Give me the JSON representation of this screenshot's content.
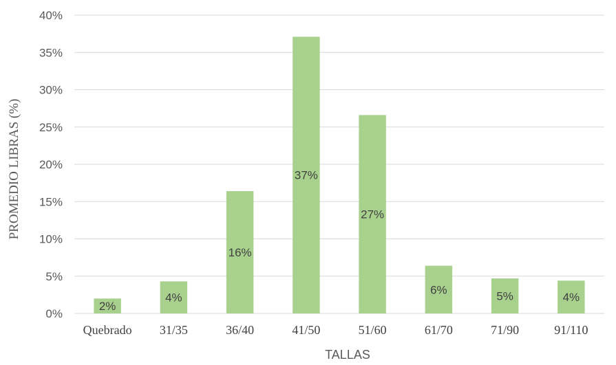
{
  "chart_data": {
    "type": "bar",
    "categories": [
      "Quebrado",
      "31/35",
      "36/40",
      "41/50",
      "51/60",
      "61/70",
      "71/90",
      "91/110"
    ],
    "values": [
      2,
      4.3,
      16.4,
      37.1,
      26.6,
      6.4,
      4.7,
      4.4
    ],
    "data_labels": [
      "2%",
      "4%",
      "16%",
      "37%",
      "27%",
      "6%",
      "5%",
      "4%"
    ],
    "xlabel": "TALLAS",
    "ylabel": "PROMEDIO LIBRAS (%)",
    "ylim": [
      0,
      40
    ],
    "yticks": [
      0,
      5,
      10,
      15,
      20,
      25,
      30,
      35,
      40
    ],
    "ytick_labels": [
      "0%",
      "5%",
      "10%",
      "15%",
      "20%",
      "25%",
      "30%",
      "35%",
      "40%"
    ],
    "grid": true,
    "legend": false,
    "bar_color": "#a9d18e",
    "grid_color": "#d9d9d9"
  }
}
